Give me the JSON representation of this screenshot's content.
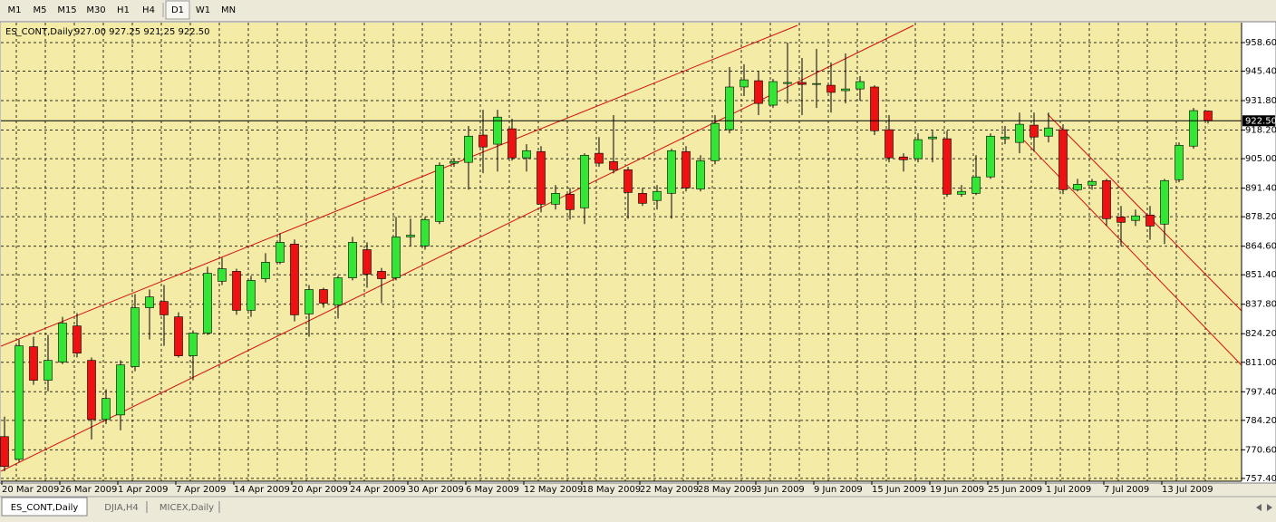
{
  "toolbar": {
    "timeframes": [
      "M1",
      "M5",
      "M15",
      "M30",
      "H1",
      "H4",
      "D1",
      "W1",
      "MN"
    ]
  },
  "tabs": [
    "ES_CONT,Daily",
    "DJIA,H4",
    "MICEX,Daily"
  ],
  "chart_data": {
    "type": "candlestick",
    "title": "ES_CONT,Daily",
    "header_values": "927.00 927.25 921.25 922.50",
    "up_color": "#33e633",
    "down_color": "#ee1111",
    "grid": true,
    "ylim": [
      756.1,
      967.8
    ],
    "yticks": [
      {
        "value": 757.4,
        "label": "757.40"
      },
      {
        "value": 770.6,
        "label": "770.60"
      },
      {
        "value": 784.2,
        "label": "784.20"
      },
      {
        "value": 797.4,
        "label": "797.40"
      },
      {
        "value": 811,
        "label": "811.00"
      },
      {
        "value": 824.2,
        "label": "824.20"
      },
      {
        "value": 837.8,
        "label": "837.80"
      },
      {
        "value": 851.4,
        "label": "851.40"
      },
      {
        "value": 864.6,
        "label": "864.60"
      },
      {
        "value": 878.2,
        "label": "878.20"
      },
      {
        "value": 891.4,
        "label": "891.40"
      },
      {
        "value": 905,
        "label": "905.00"
      },
      {
        "value": 918.2,
        "label": "918.20"
      },
      {
        "value": 931.8,
        "label": "931.80"
      },
      {
        "value": 945.4,
        "label": "945.40"
      },
      {
        "value": 958.6,
        "label": "958.60"
      }
    ],
    "price_line": {
      "value": 922.5,
      "label": "922.50"
    },
    "categories": [
      "20 Mar 2009",
      null,
      null,
      null,
      "26 Mar 2009",
      null,
      null,
      null,
      "1 Apr 2009",
      null,
      null,
      null,
      "7 Apr 2009",
      null,
      null,
      null,
      "14 Apr 2009",
      null,
      null,
      null,
      "20 Apr 2009",
      null,
      null,
      null,
      "24 Apr 2009",
      null,
      null,
      null,
      "30 Apr 2009",
      null,
      null,
      null,
      "6 May 2009",
      null,
      null,
      null,
      "12 May 2009",
      null,
      null,
      null,
      "18 May 2009",
      null,
      null,
      null,
      "22 May 2009",
      null,
      null,
      null,
      "28 May 2009",
      null,
      null,
      null,
      "3 Jun 2009",
      null,
      null,
      null,
      "9 Jun 2009",
      null,
      null,
      null,
      "15 Jun 2009",
      null,
      null,
      null,
      "19 Jun 2009",
      null,
      null,
      null,
      "25 Jun 2009",
      null,
      null,
      null,
      "1 Jul 2009",
      null,
      null,
      null,
      "7 Jul 2009",
      null,
      null,
      null,
      "13 Jul 2009",
      null,
      null,
      null
    ],
    "open": [
      776.7,
      766.2,
      818.2,
      802.7,
      811.1,
      827.8,
      811.9,
      784.6,
      786.7,
      809.0,
      836.2,
      839.1,
      832.0,
      814.0,
      824.5,
      848.4,
      853.0,
      835.0,
      849.6,
      857.2,
      865.6,
      833.3,
      844.6,
      837.5,
      850.0,
      863.0,
      853.0,
      850.0,
      868.9,
      864.7,
      876.0,
      902.9,
      903.3,
      915.9,
      911.7,
      918.8,
      905.4,
      908.3,
      884.0,
      888.6,
      882.3,
      907.5,
      903.7,
      899.9,
      889.0,
      885.7,
      889.0,
      908.3,
      891.0,
      904.1,
      918.4,
      938.1,
      941.0,
      929.7,
      939.7,
      940.2,
      939.3,
      938.9,
      936.4,
      937.2,
      938.1,
      918.4,
      905.8,
      905.0,
      914.2,
      914.2,
      888.6,
      889.0,
      896.6,
      914.2,
      912.5,
      920.5,
      915.4,
      918.4,
      890.7,
      892.8,
      894.9,
      878.1,
      876.5,
      879.0,
      874.8,
      895.3,
      910.8,
      927.0
    ],
    "high": [
      785.9,
      821.5,
      822.8,
      823.6,
      832.0,
      833.7,
      813.2,
      798.5,
      811.9,
      842.5,
      844.6,
      846.7,
      834.1,
      825.7,
      855.1,
      859.3,
      854.2,
      850.9,
      861.4,
      870.6,
      867.7,
      846.7,
      845.4,
      850.9,
      868.9,
      866.4,
      854.6,
      878.1,
      877.3,
      878.1,
      903.3,
      905.0,
      920.1,
      927.6,
      927.6,
      923.4,
      911.7,
      910.8,
      892.8,
      891.5,
      907.5,
      915.0,
      925.1,
      901.2,
      891.5,
      892.8,
      909.6,
      910.8,
      906.6,
      925.1,
      947.3,
      948.6,
      945.2,
      941.8,
      958.6,
      951.5,
      955.7,
      949.4,
      953.6,
      943.1,
      938.9,
      925.1,
      907.5,
      916.7,
      917.9,
      917.9,
      892.8,
      906.6,
      916.7,
      920.1,
      926.3,
      926.3,
      926.3,
      920.9,
      895.7,
      895.7,
      895.7,
      883.2,
      881.5,
      883.2,
      895.7,
      912.5,
      928.4,
      927.25
    ],
    "low": [
      760.7,
      765.0,
      800.6,
      797.6,
      810.2,
      813.2,
      775.4,
      782.5,
      779.6,
      806.9,
      821.5,
      818.6,
      813.2,
      802.7,
      823.6,
      846.7,
      832.9,
      832.0,
      847.9,
      856.3,
      829.9,
      822.8,
      836.2,
      831.2,
      848.8,
      845.4,
      838.3,
      848.8,
      864.7,
      863.0,
      874.8,
      901.2,
      890.7,
      898.3,
      899.1,
      904.1,
      899.1,
      880.2,
      881.5,
      876.9,
      874.8,
      901.2,
      898.2,
      877.3,
      883.2,
      881.5,
      877.3,
      889.9,
      889.9,
      902.4,
      916.7,
      933.9,
      925.1,
      928.4,
      930.5,
      925.1,
      928.4,
      926.3,
      930.5,
      931.8,
      915.9,
      903.3,
      899.1,
      903.3,
      903.3,
      887.4,
      887.4,
      888.2,
      895.7,
      911.7,
      907.5,
      908.3,
      912.5,
      888.6,
      889.9,
      890.7,
      873.9,
      864.7,
      873.9,
      867.6,
      865.6,
      894.1,
      909.6,
      921.25
    ],
    "close": [
      762.9,
      818.6,
      802.7,
      811.9,
      829.1,
      815.2,
      784.6,
      794.3,
      809.8,
      836.2,
      841.2,
      832.9,
      814.0,
      824.5,
      852.1,
      854.2,
      835.0,
      848.8,
      857.2,
      866.4,
      832.9,
      844.6,
      838.3,
      850.0,
      866.4,
      851.7,
      849.6,
      868.9,
      869.7,
      876.9,
      902.0,
      903.7,
      915.4,
      910.4,
      924.2,
      905.4,
      908.7,
      884.0,
      889.0,
      881.5,
      906.6,
      902.9,
      899.9,
      889.4,
      884.4,
      889.9,
      908.7,
      891.5,
      904.1,
      921.3,
      938.1,
      941.4,
      930.5,
      940.6,
      940.2,
      939.3,
      939.7,
      935.6,
      937.2,
      940.6,
      917.9,
      905.4,
      904.5,
      913.8,
      915.0,
      888.6,
      889.9,
      896.6,
      915.4,
      915.0,
      920.9,
      915.0,
      919.2,
      890.7,
      893.2,
      894.5,
      877.3,
      875.6,
      878.6,
      873.9,
      894.9,
      911.2,
      927.2,
      922.5
    ]
  }
}
